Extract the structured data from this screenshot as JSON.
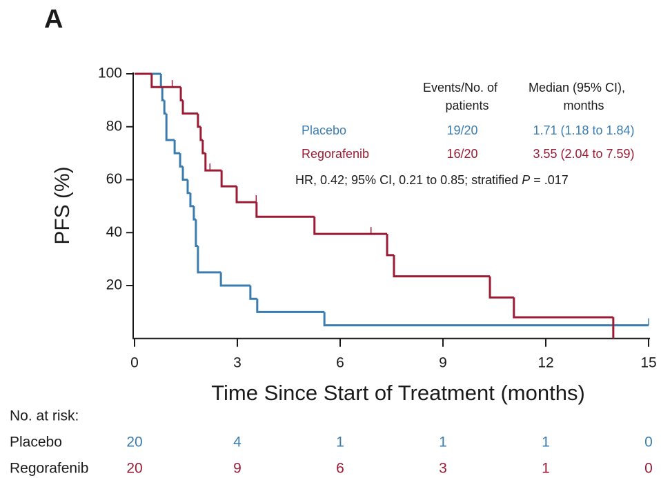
{
  "chart_data": {
    "type": "kaplan-meier",
    "panel_label": "A",
    "ylabel": "PFS (%)",
    "xlabel": "Time Since Start of Treatment (months)",
    "xlim": [
      0,
      15
    ],
    "ylim": [
      0,
      100
    ],
    "xticks": [
      0,
      3,
      6,
      9,
      12,
      15
    ],
    "yticks": [
      20,
      40,
      60,
      80,
      100
    ],
    "series": [
      {
        "name": "Placebo",
        "color": "#3b7cae",
        "x": [
          0,
          0.77,
          0.81,
          0.87,
          0.93,
          1.17,
          1.33,
          1.41,
          1.55,
          1.63,
          1.73,
          1.79,
          1.85,
          2.52,
          3.38,
          3.58,
          5.54,
          15
        ],
        "values": [
          100,
          95,
          90,
          85,
          75,
          70,
          65,
          60,
          55,
          50,
          45,
          35,
          25,
          20,
          15,
          10,
          5,
          5
        ],
        "censor_x": [
          15
        ],
        "censor_values": [
          5
        ],
        "events": "19/20",
        "median": "1.71 (1.18 to 1.84)"
      },
      {
        "name": "Regorafenib",
        "color": "#9b1b35",
        "x": [
          0,
          0.5,
          1.35,
          1.41,
          1.85,
          1.93,
          1.99,
          2.07,
          2.54,
          2.98,
          3.56,
          5.25,
          7.37,
          7.57,
          10.37,
          11.07,
          13.97
        ],
        "values": [
          100,
          95,
          90,
          85,
          80,
          75,
          70,
          63.5,
          57.5,
          51.5,
          46,
          39.5,
          31.5,
          23.5,
          15.5,
          8,
          0
        ],
        "censor_x": [
          1.1,
          2.2,
          3.55,
          6.9
        ],
        "censor_values": [
          95,
          63.5,
          51.5,
          39.5
        ],
        "events": "16/20",
        "median": "3.55 (2.04 to 7.59)"
      }
    ],
    "legend_headers": {
      "events": [
        "Events/No. of",
        "patients"
      ],
      "median": [
        "Median (95% CI),",
        "months"
      ]
    },
    "hr_text": [
      "HR, 0.42; 95% CI, 0.21 to 0.85; stratified ",
      "P",
      " = .017"
    ],
    "risk_table": {
      "title": "No. at risk:",
      "rows": [
        {
          "name": "Placebo",
          "values": [
            20,
            4,
            1,
            1,
            1,
            0
          ]
        },
        {
          "name": "Regorafenib",
          "values": [
            20,
            9,
            6,
            3,
            1,
            0
          ]
        }
      ]
    }
  }
}
